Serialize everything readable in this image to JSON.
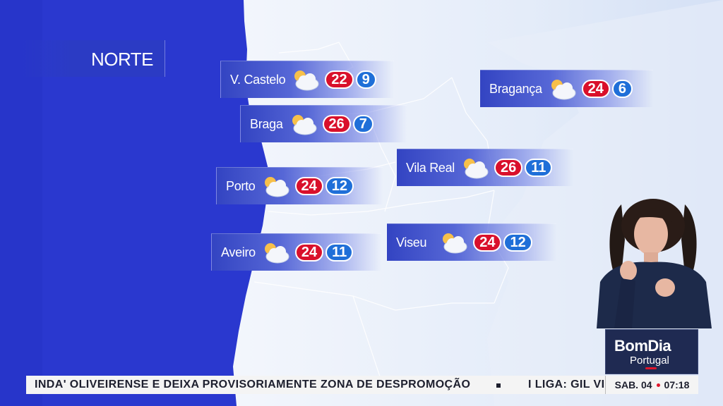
{
  "region": "NORTE",
  "cities": [
    {
      "name": "V. Castelo",
      "icon": "partly-cloudy-icon",
      "max": "22",
      "min": "9"
    },
    {
      "name": "Braga",
      "icon": "partly-cloudy-icon",
      "max": "26",
      "min": "7"
    },
    {
      "name": "Porto",
      "icon": "partly-cloudy-icon",
      "max": "24",
      "min": "12"
    },
    {
      "name": "Aveiro",
      "icon": "partly-cloudy-icon",
      "max": "24",
      "min": "11"
    },
    {
      "name": "Bragança",
      "icon": "partly-cloudy-icon",
      "max": "24",
      "min": "6"
    },
    {
      "name": "Vila Real",
      "icon": "partly-cloudy-icon",
      "max": "26",
      "min": "11"
    },
    {
      "name": "Viseu",
      "icon": "partly-cloudy-icon",
      "max": "24",
      "min": "12"
    }
  ],
  "logo": {
    "line1": "BomDia",
    "line2": "Portugal"
  },
  "ticker": {
    "headline": "INDA' OLIVEIRENSE E DEIXA PROVISORIAMENTE ZONA DE DESPROMOÇÃO",
    "next": "I LIGA: GIL VIC"
  },
  "clock": {
    "date": "SAB. 04",
    "time": "07:18"
  },
  "colors": {
    "max_badge": "#d9102b",
    "min_badge": "#1f6fd8",
    "sea": "#2a38cf"
  }
}
